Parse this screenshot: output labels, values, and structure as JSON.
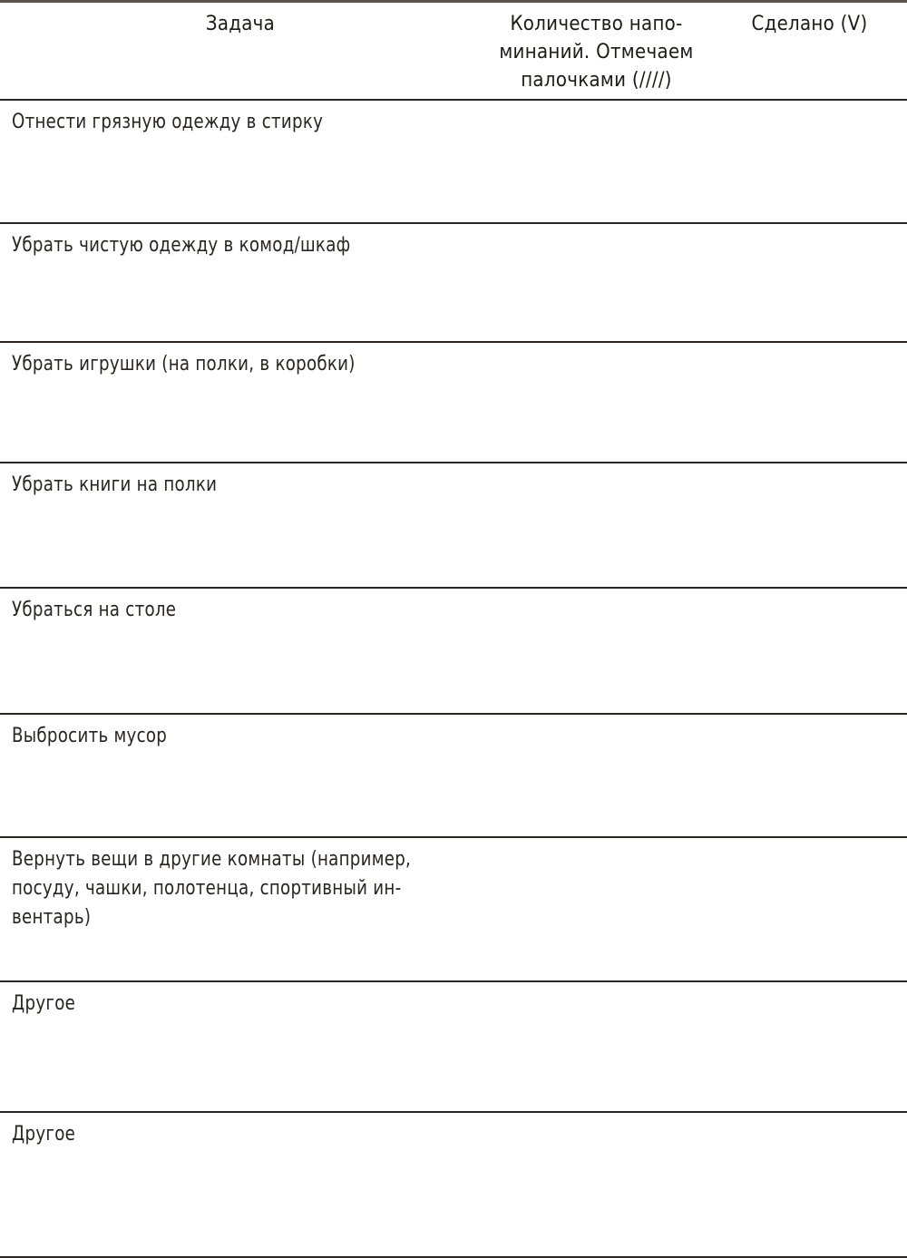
{
  "table": {
    "headers": {
      "task": "Задача",
      "reminders": [
        "Количество напо-",
        "минаний. Отмечаем",
        "палочками (////)"
      ],
      "done": "Сделано (V)"
    },
    "rows": [
      {
        "task": [
          "Отнести грязную одежду в стирку"
        ],
        "reminders": "",
        "done": ""
      },
      {
        "task": [
          "Убрать чистую одежду в комод/шкаф"
        ],
        "reminders": "",
        "done": ""
      },
      {
        "task": [
          "Убрать игрушки (на полки, в коробки)"
        ],
        "reminders": "",
        "done": ""
      },
      {
        "task": [
          "Убрать книги на полки"
        ],
        "reminders": "",
        "done": ""
      },
      {
        "task": [
          "Убраться на столе"
        ],
        "reminders": "",
        "done": ""
      },
      {
        "task": [
          "Выбросить мусор"
        ],
        "reminders": "",
        "done": ""
      },
      {
        "task": [
          "Вернуть вещи в другие комнаты (например,",
          "посуду, чашки, полотенца, спортивный ин-",
          "вентарь)"
        ],
        "reminders": "",
        "done": ""
      },
      {
        "task": [
          "Другое"
        ],
        "reminders": "",
        "done": ""
      },
      {
        "task": [
          "Другое"
        ],
        "reminders": "",
        "done": ""
      }
    ]
  },
  "colors": {
    "text": "#1e1a17",
    "top_rule": "#5b534b",
    "rule": "#2a2520"
  }
}
